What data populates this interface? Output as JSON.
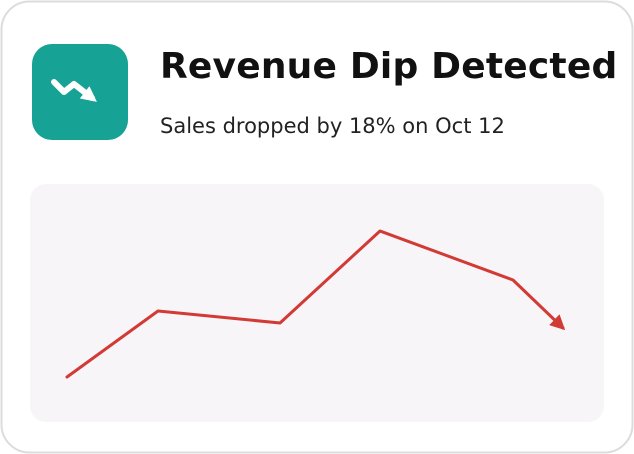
{
  "card": {
    "title": "Revenue Dip Detected",
    "subtitle": "Sales dropped by 18% on Oct 12"
  }
}
